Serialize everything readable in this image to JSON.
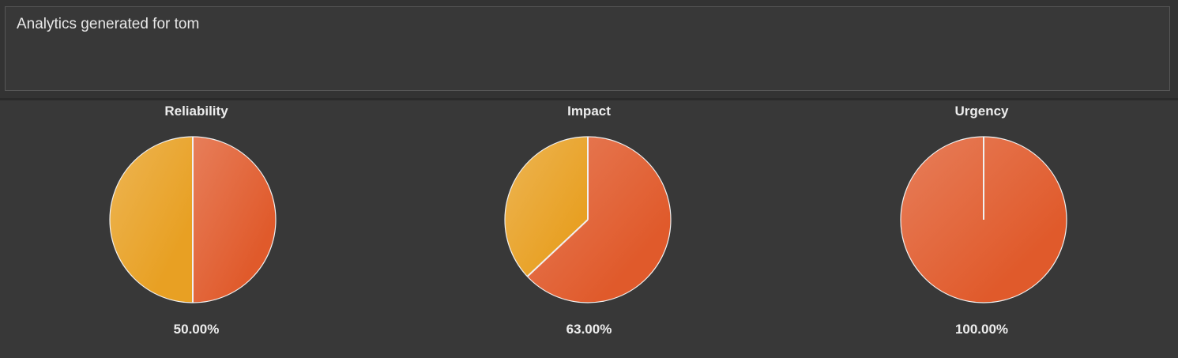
{
  "report": {
    "text": "Analytics generated for tom"
  },
  "colors": {
    "primary_slice": "#e05a2b",
    "remainder_slice": "#e8a023",
    "outline": "#f0f0f0"
  },
  "chart_data": [
    {
      "type": "pie",
      "title": "Reliability",
      "value_label": "50.00%",
      "slices": [
        {
          "value": 50.0,
          "color": "#e05a2b"
        },
        {
          "value": 50.0,
          "color": "#e8a023"
        }
      ]
    },
    {
      "type": "pie",
      "title": "Impact",
      "value_label": "63.00%",
      "slices": [
        {
          "value": 63.0,
          "color": "#e05a2b"
        },
        {
          "value": 37.0,
          "color": "#e8a023"
        }
      ]
    },
    {
      "type": "pie",
      "title": "Urgency",
      "value_label": "100.00%",
      "slices": [
        {
          "value": 100.0,
          "color": "#e05a2b"
        },
        {
          "value": 0.0,
          "color": "#e8a023"
        }
      ]
    }
  ]
}
